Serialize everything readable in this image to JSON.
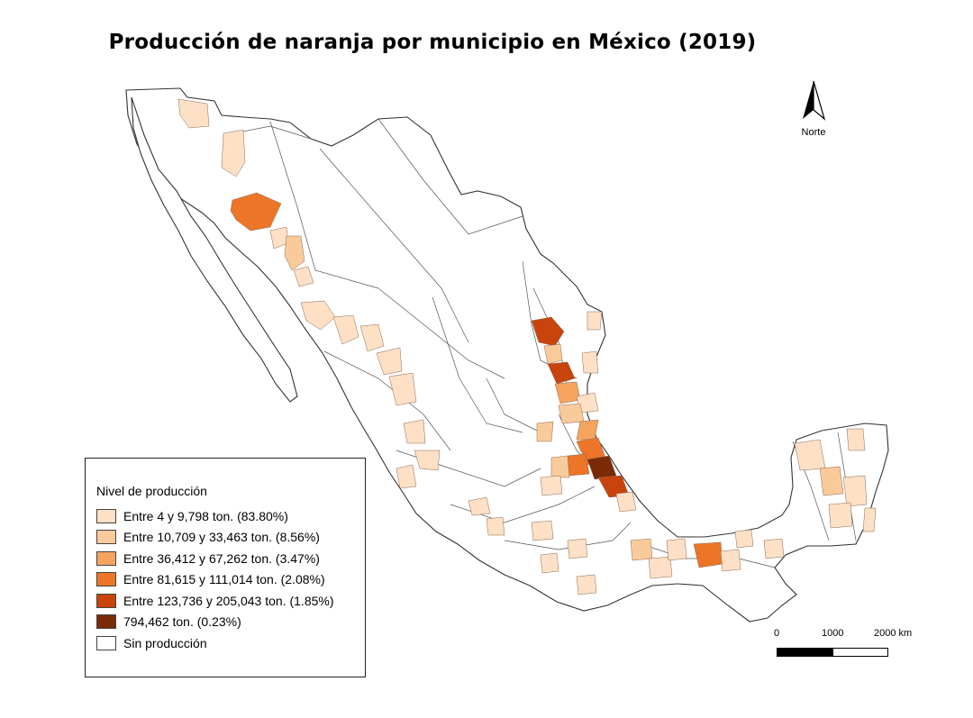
{
  "title": "Producción de naranja por municipio en México (2019)",
  "north_arrow": {
    "label": "Norte",
    "icon": "north-arrow-icon"
  },
  "legend": {
    "title": "Nivel de producción",
    "items": [
      {
        "label": "Entre 4 y 9,798 ton. (83.80%)",
        "color": "#fde0c5"
      },
      {
        "label": "Entre 10,709 y 33,463 ton. (8.56%)",
        "color": "#facb9a"
      },
      {
        "label": "Entre 36,412 y 67,262 ton. (3.47%)",
        "color": "#f5a45e"
      },
      {
        "label": "Entre 81,615 y 111,014 ton. (2.08%)",
        "color": "#ec7527"
      },
      {
        "label": "Entre 123,736 y 205,043 ton. (1.85%)",
        "color": "#c8440c"
      },
      {
        "label": "794,462 ton. (0.23%)",
        "color": "#7a2a06"
      },
      {
        "label": "Sin producción",
        "color": "#ffffff"
      }
    ]
  },
  "scale_bar": {
    "labels": [
      "0",
      "1000",
      "2000 km"
    ]
  }
}
